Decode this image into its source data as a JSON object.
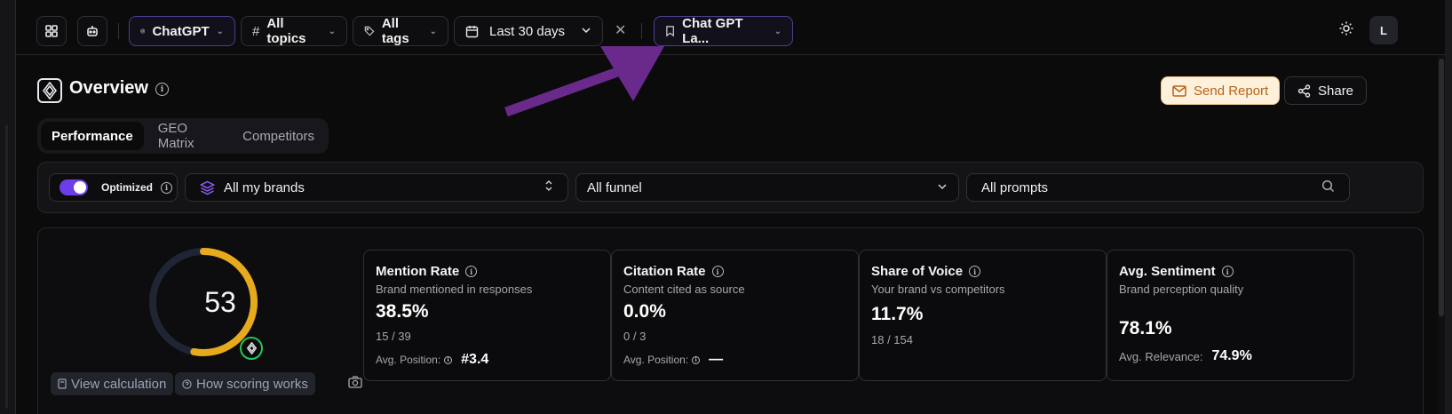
{
  "topbar": {
    "model_label": "ChatGPT",
    "topics_label": "All topics",
    "tags_label": "All tags",
    "date_label": "Last 30 days",
    "saved_view_label": "Chat GPT La...",
    "avatar_initial": "L"
  },
  "header": {
    "title": "Overview",
    "send_report_label": "Send Report",
    "share_label": "Share"
  },
  "tabs": [
    {
      "label": "Performance",
      "active": true
    },
    {
      "label": "GEO Matrix",
      "active": false
    },
    {
      "label": "Competitors",
      "active": false
    }
  ],
  "filters": {
    "optimized_label": "Optimized",
    "optimized_on": true,
    "brands_label": "All my brands",
    "funnel_label": "All funnel",
    "prompts_label": "All prompts"
  },
  "score": {
    "value": "53",
    "fraction": 0.53,
    "view_calculation_label": "View calculation",
    "how_scoring_label": "How scoring works"
  },
  "metrics": [
    {
      "title": "Mention Rate",
      "subtitle": "Brand mentioned in responses",
      "value": "38.5%",
      "ratio": "15 / 39",
      "pos_label": "Avg. Position:",
      "pos_value": "#3.4"
    },
    {
      "title": "Citation Rate",
      "subtitle": "Content cited as source",
      "value": "0.0%",
      "ratio": "0 / 3",
      "pos_label": "Avg. Position:",
      "pos_value": "—"
    },
    {
      "title": "Share of Voice",
      "subtitle": "Your brand vs competitors",
      "value": "11.7%",
      "ratio": "18 / 154"
    },
    {
      "title": "Avg. Sentiment",
      "subtitle": "Brand perception quality",
      "value": "78.1%",
      "relevance_label": "Avg. Relevance:",
      "relevance_value": "74.9%"
    }
  ],
  "colors": {
    "accent_purple": "#6d3ee8",
    "score_ring": "#e6aa1c",
    "arrow": "#6a2a8c",
    "send_report_bg": "#fdf1dc"
  }
}
